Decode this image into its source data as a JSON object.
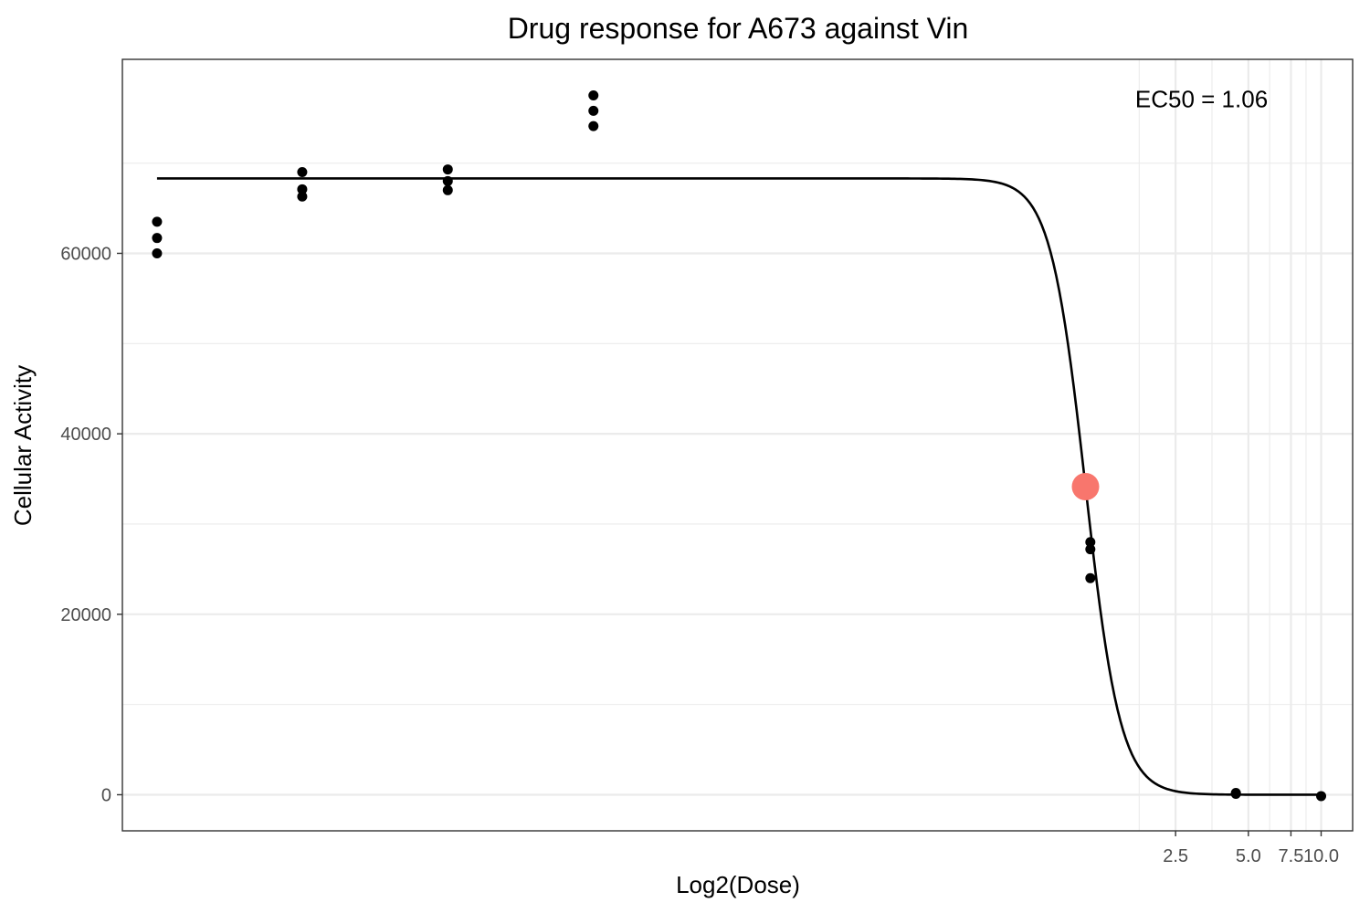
{
  "chart_data": {
    "type": "scatter",
    "title": "Drug response for A673 against Vin",
    "xlabel": "Log2(Dose)",
    "ylabel": "Cellular Activity",
    "x_scale": "log2",
    "xlim": [
      0.00011,
      13.5
    ],
    "ylim": [
      -4000,
      81500
    ],
    "x_ticks": [
      {
        "value": 2.5,
        "label": "2.5"
      },
      {
        "value": 5.0,
        "label": "5.0"
      },
      {
        "value": 7.5,
        "label": "7.5"
      },
      {
        "value": 10.0,
        "label": "10.0"
      }
    ],
    "y_ticks": [
      {
        "value": 0,
        "label": "0"
      },
      {
        "value": 20000,
        "label": "20000"
      },
      {
        "value": 40000,
        "label": "40000"
      },
      {
        "value": 60000,
        "label": "60000"
      }
    ],
    "grid": true,
    "series": [
      {
        "type": "scatter",
        "color": "#000000",
        "points": [
          {
            "x": 0.000153,
            "y": 63500
          },
          {
            "x": 0.000153,
            "y": 61700
          },
          {
            "x": 0.000153,
            "y": 60000
          },
          {
            "x": 0.00061,
            "y": 69000
          },
          {
            "x": 0.00061,
            "y": 67100
          },
          {
            "x": 0.00061,
            "y": 66300
          },
          {
            "x": 0.00244,
            "y": 69300
          },
          {
            "x": 0.00244,
            "y": 68000
          },
          {
            "x": 0.00244,
            "y": 67000
          },
          {
            "x": 0.00977,
            "y": 77500
          },
          {
            "x": 0.00977,
            "y": 75800
          },
          {
            "x": 0.00977,
            "y": 74100
          },
          {
            "x": 1.11,
            "y": 28000
          },
          {
            "x": 1.11,
            "y": 27200
          },
          {
            "x": 1.11,
            "y": 24000
          },
          {
            "x": 4.44,
            "y": 200
          },
          {
            "x": 4.44,
            "y": 100
          },
          {
            "x": 10.0,
            "y": -150
          }
        ]
      },
      {
        "type": "line",
        "color": "#000000",
        "model": "logistic",
        "params": {
          "top": 68300,
          "bottom": 0,
          "ec50": 1.06,
          "hill": 6.0
        },
        "x_range": [
          0.000153,
          10.0
        ]
      },
      {
        "type": "point",
        "color": "#F8766D",
        "points": [
          {
            "x": 1.06,
            "y": 34150
          }
        ]
      }
    ],
    "annotations": [
      {
        "text": "EC50 = 1.06",
        "x": 3.2,
        "y": 77100
      }
    ]
  }
}
